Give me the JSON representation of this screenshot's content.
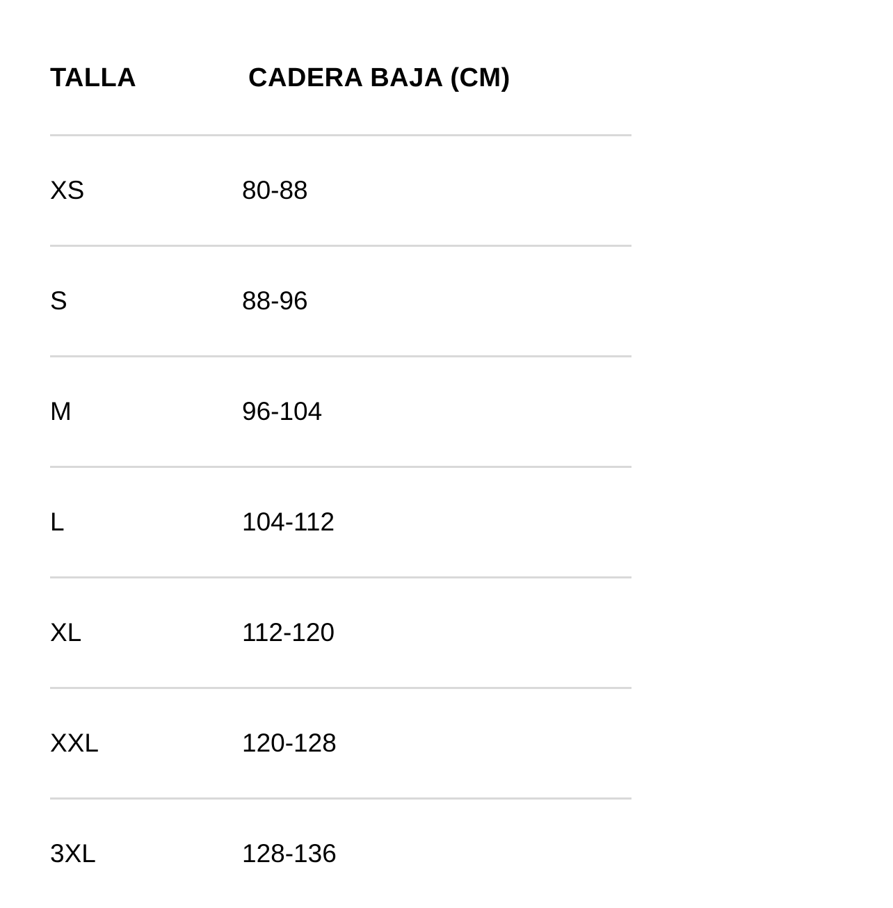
{
  "table": {
    "headers": [
      "TALLA",
      "CADERA BAJA (CM)"
    ],
    "rows": [
      [
        "XS",
        "80-88"
      ],
      [
        "S",
        "88-96"
      ],
      [
        "M",
        "96-104"
      ],
      [
        "L",
        "104-112"
      ],
      [
        "XL",
        "112-120"
      ],
      [
        "XXL",
        "120-128"
      ],
      [
        "3XL",
        "128-136"
      ]
    ]
  },
  "colors": {
    "divider": "#d9d9d9",
    "text": "#000000"
  }
}
